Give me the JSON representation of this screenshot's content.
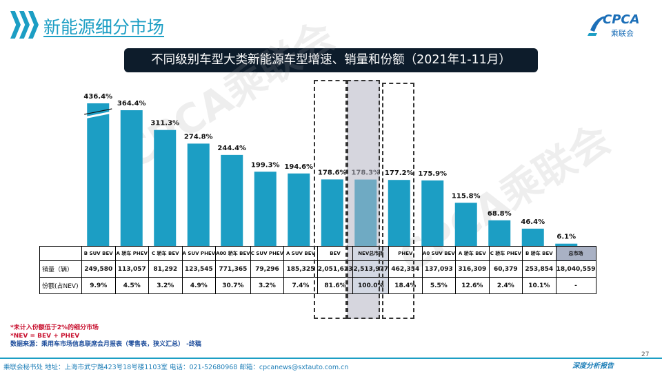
{
  "header": {
    "title": "新能源细分市场",
    "logo_brand": "CPCA",
    "logo_cn": "乘联会"
  },
  "subtitle": "不同级别车型大类新能源车型增速、销量和份额（2021年1-11月）",
  "colors": {
    "accent": "#1c9ec4",
    "bar": "#1c9ec4",
    "subtitle_bg": "#0d1c2b",
    "total_header_bg": "#a9b1c4",
    "footnote_red": "#c8102e",
    "footnote_blue": "#1f4e9c"
  },
  "chart_data": {
    "type": "bar",
    "categories": [
      "B SUV BEV",
      "A 轿车 PHEV",
      "C 轿车 BEV",
      "A SUV PHEV",
      "A00 轿车 BEV",
      "C SUV PHEV",
      "A SUV BEV",
      "BEV",
      "NEV总市场",
      "PHEV",
      "A0 SUV BEV",
      "A 轿车 BEV",
      "C 轿车 PHEV",
      "B 轿车 BEV",
      "总市场"
    ],
    "series": [
      {
        "values": [
          436.4,
          364.4,
          311.3,
          274.8,
          244.4,
          199.3,
          194.6,
          178.6,
          178.3,
          177.2,
          175.9,
          115.8,
          68.8,
          46.4,
          6.1
        ],
        "labels": [
          "436.4%",
          "364.4%",
          "311.3%",
          "274.8%",
          "244.4%",
          "199.3%",
          "194.6%",
          "178.6%",
          "178.3%",
          "177.2%",
          "175.9%",
          "115.8%",
          "68.8%",
          "46.4%",
          "6.1%"
        ]
      }
    ],
    "axis_break_on_first_bar": true,
    "highlighted_categories": [
      "BEV",
      "NEV总市场",
      "PHEV"
    ],
    "grid": false,
    "legend": "none"
  },
  "table": {
    "rows": [
      {
        "label": "销量（辆）",
        "cells": [
          "249,580",
          "113,057",
          "81,292",
          "123,545",
          "771,365",
          "79,296",
          "185,325",
          "2,051,623",
          "2,513,977",
          "462,354",
          "137,093",
          "316,309",
          "60,379",
          "253,854",
          "18,040,559"
        ]
      },
      {
        "label": "份额(占NEV)",
        "cells": [
          "9.9%",
          "4.5%",
          "3.2%",
          "4.9%",
          "30.7%",
          "3.2%",
          "7.4%",
          "81.6%",
          "100.0%",
          "18.4%",
          "5.5%",
          "12.6%",
          "2.4%",
          "10.1%",
          "-"
        ]
      }
    ]
  },
  "footnotes": [
    "*未计入份额低于2%的细分市场",
    "*NEV = BEV + PHEV",
    "数据来源：乘用车市场信息联席会月报表（零售表，狭义汇总） -终稿"
  ],
  "watermark": "CPCA乘联会",
  "page_number": "27",
  "footer": {
    "contact": "乘联会秘书处   地址：上海市武宁路423号18号楼1103室  电话：021-52680968   邮箱：cpcanews@sxtauto.com.cn",
    "report": "深度分析报告"
  }
}
